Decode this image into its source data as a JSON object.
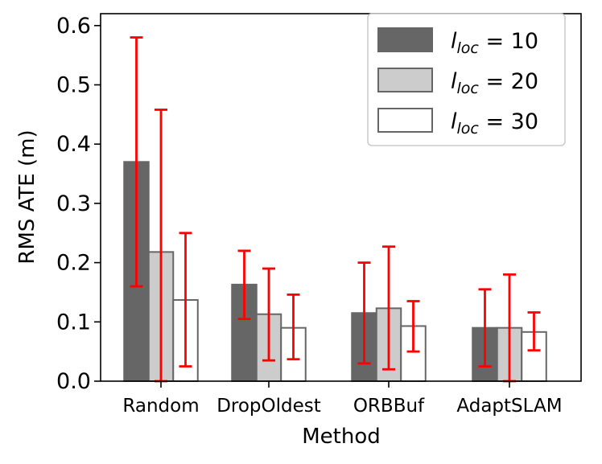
{
  "chart_data": {
    "type": "bar",
    "title": "",
    "xlabel": "Method",
    "ylabel": "RMS ATE (m)",
    "ylim": [
      0,
      0.62
    ],
    "yticks": [
      0.0,
      0.1,
      0.2,
      0.3,
      0.4,
      0.5,
      0.6
    ],
    "ytick_labels": [
      "0.0",
      "0.1",
      "0.2",
      "0.3",
      "0.4",
      "0.5",
      "0.6"
    ],
    "categories": [
      "Random",
      "DropOldest",
      "ORBBuf",
      "AdaptSLAM"
    ],
    "series": [
      {
        "name": "l_loc = 10",
        "legend_var": "l",
        "legend_sub": "loc",
        "legend_eq": " = 10",
        "fill": "#666666",
        "stroke": "#666666",
        "values": [
          0.37,
          0.163,
          0.115,
          0.09
        ],
        "err_low": [
          0.16,
          0.105,
          0.03,
          0.025
        ],
        "err_high": [
          0.58,
          0.22,
          0.2,
          0.155
        ]
      },
      {
        "name": "l_loc = 20",
        "legend_var": "l",
        "legend_sub": "loc",
        "legend_eq": " = 20",
        "fill": "#cccccc",
        "stroke": "#666666",
        "values": [
          0.218,
          0.113,
          0.123,
          0.09
        ],
        "err_low": [
          0.0,
          0.035,
          0.02,
          0.0
        ],
        "err_high": [
          0.458,
          0.19,
          0.227,
          0.18
        ]
      },
      {
        "name": "l_loc = 30",
        "legend_var": "l",
        "legend_sub": "loc",
        "legend_eq": " = 30",
        "fill": "#ffffff",
        "stroke": "#666666",
        "values": [
          0.137,
          0.09,
          0.093,
          0.083
        ],
        "err_low": [
          0.025,
          0.037,
          0.05,
          0.052
        ],
        "err_high": [
          0.25,
          0.146,
          0.135,
          0.116
        ]
      }
    ],
    "error_bar_color": "#ff0000",
    "legend_position": "top-right",
    "grid": false
  }
}
